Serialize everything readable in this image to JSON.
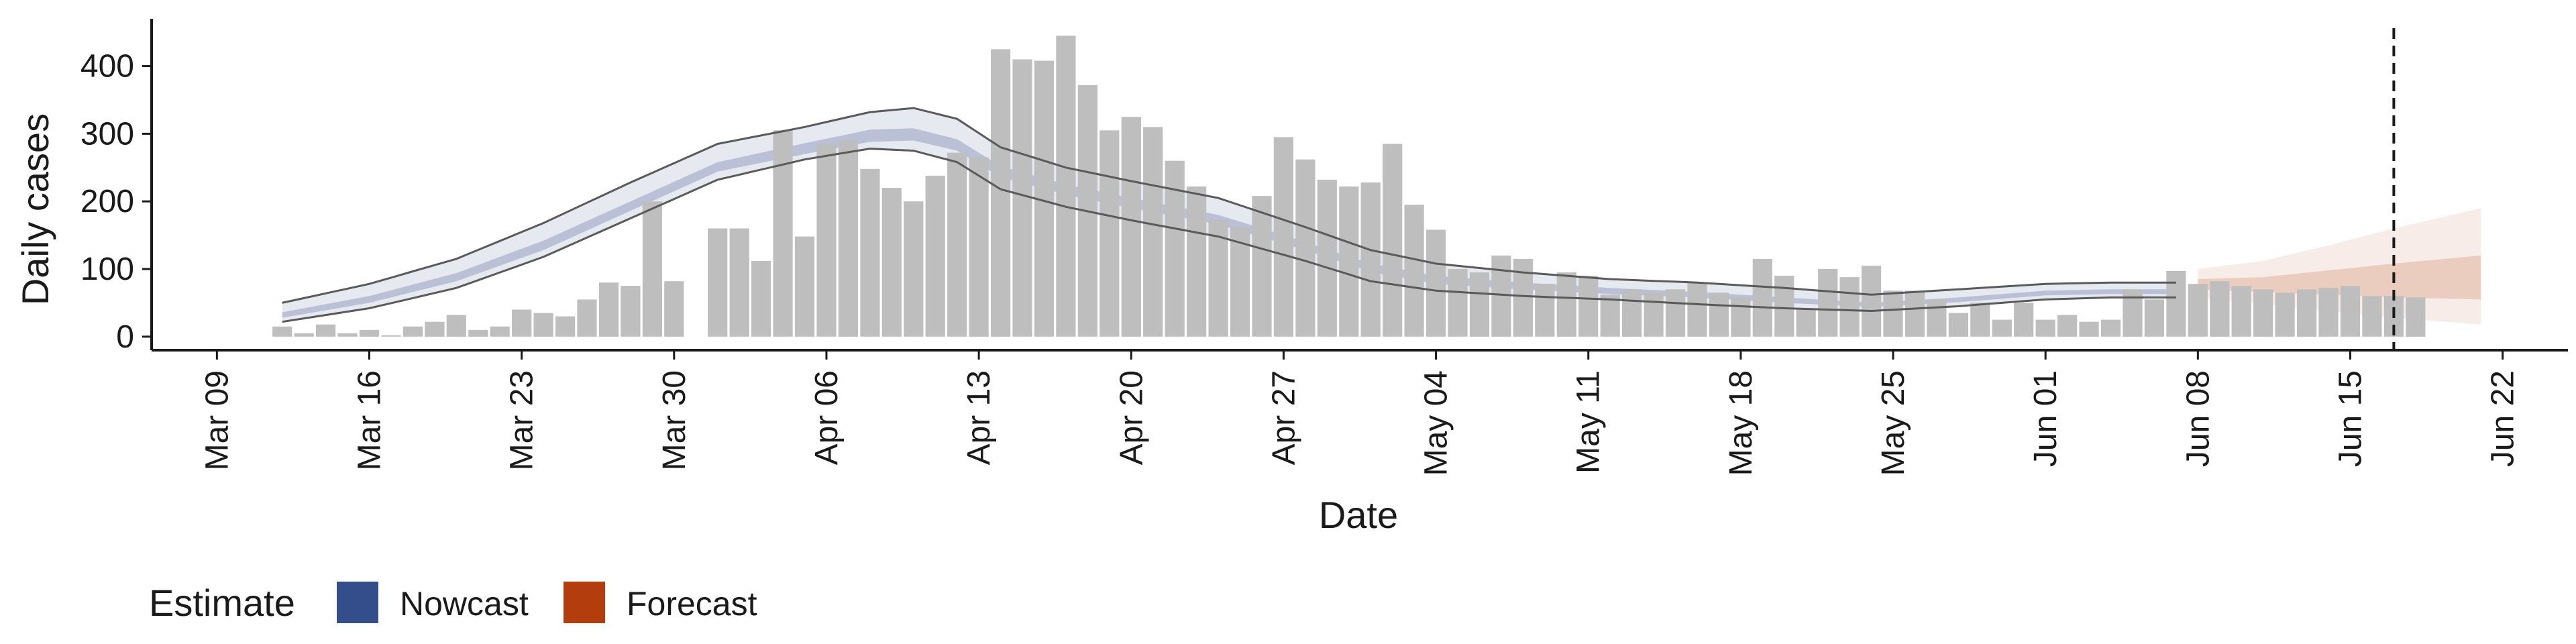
{
  "chart_data": {
    "type": "bar",
    "xlabel": "Date",
    "ylabel": "Daily cases",
    "date_range": [
      "2020-03-06",
      "2020-06-25"
    ],
    "ylim": [
      -20,
      470
    ],
    "y_ticks": [
      0,
      100,
      200,
      300,
      400
    ],
    "x_ticks": [
      {
        "date": "2020-03-09",
        "label": "Mar 09"
      },
      {
        "date": "2020-03-16",
        "label": "Mar 16"
      },
      {
        "date": "2020-03-23",
        "label": "Mar 23"
      },
      {
        "date": "2020-03-30",
        "label": "Mar 30"
      },
      {
        "date": "2020-04-06",
        "label": "Apr 06"
      },
      {
        "date": "2020-04-13",
        "label": "Apr 13"
      },
      {
        "date": "2020-04-20",
        "label": "Apr 20"
      },
      {
        "date": "2020-04-27",
        "label": "Apr 27"
      },
      {
        "date": "2020-05-04",
        "label": "May 04"
      },
      {
        "date": "2020-05-11",
        "label": "May 11"
      },
      {
        "date": "2020-05-18",
        "label": "May 18"
      },
      {
        "date": "2020-05-25",
        "label": "May 25"
      },
      {
        "date": "2020-06-01",
        "label": "Jun 01"
      },
      {
        "date": "2020-06-08",
        "label": "Jun 08"
      },
      {
        "date": "2020-06-15",
        "label": "Jun 15"
      },
      {
        "date": "2020-06-22",
        "label": "Jun 22"
      }
    ],
    "bars": {
      "start_date": "2020-03-12",
      "values": [
        15,
        5,
        18,
        5,
        10,
        2,
        15,
        22,
        32,
        10,
        15,
        40,
        35,
        30,
        55,
        80,
        75,
        200,
        82,
        0,
        160,
        160,
        112,
        305,
        148,
        285,
        290,
        248,
        220,
        200,
        238,
        272,
        265,
        425,
        410,
        408,
        445,
        372,
        305,
        325,
        310,
        260,
        222,
        172,
        162,
        208,
        295,
        262,
        232,
        222,
        228,
        285,
        195,
        158,
        100,
        95,
        120,
        115,
        78,
        95,
        90,
        62,
        70,
        65,
        70,
        80,
        65,
        58,
        115,
        90,
        40,
        100,
        88,
        105,
        68,
        68,
        55,
        35,
        50,
        25,
        50,
        25,
        32,
        22,
        25,
        70,
        55,
        97,
        78,
        82,
        75,
        70,
        65,
        70,
        72,
        75,
        60,
        60,
        58
      ]
    },
    "nowcast": {
      "start_date": "2020-03-12",
      "end_date": "2020-06-07",
      "outer_upper_points": [
        [
          "2020-03-12",
          50
        ],
        [
          "2020-03-16",
          78
        ],
        [
          "2020-03-20",
          115
        ],
        [
          "2020-03-24",
          168
        ],
        [
          "2020-03-28",
          228
        ],
        [
          "2020-04-01",
          285
        ],
        [
          "2020-04-05",
          310
        ],
        [
          "2020-04-08",
          332
        ],
        [
          "2020-04-10",
          338
        ],
        [
          "2020-04-12",
          322
        ],
        [
          "2020-04-14",
          280
        ],
        [
          "2020-04-17",
          250
        ],
        [
          "2020-04-20",
          230
        ],
        [
          "2020-04-24",
          205
        ],
        [
          "2020-04-28",
          162
        ],
        [
          "2020-05-01",
          128
        ],
        [
          "2020-05-04",
          108
        ],
        [
          "2020-05-08",
          95
        ],
        [
          "2020-05-12",
          85
        ],
        [
          "2020-05-16",
          80
        ],
        [
          "2020-05-20",
          72
        ],
        [
          "2020-05-24",
          62
        ],
        [
          "2020-05-28",
          70
        ],
        [
          "2020-06-01",
          78
        ],
        [
          "2020-06-04",
          80
        ],
        [
          "2020-06-07",
          80
        ]
      ],
      "outer_lower_points": [
        [
          "2020-03-12",
          22
        ],
        [
          "2020-03-16",
          42
        ],
        [
          "2020-03-20",
          72
        ],
        [
          "2020-03-24",
          118
        ],
        [
          "2020-03-28",
          175
        ],
        [
          "2020-04-01",
          232
        ],
        [
          "2020-04-05",
          262
        ],
        [
          "2020-04-08",
          278
        ],
        [
          "2020-04-10",
          275
        ],
        [
          "2020-04-12",
          258
        ],
        [
          "2020-04-14",
          218
        ],
        [
          "2020-04-17",
          192
        ],
        [
          "2020-04-20",
          172
        ],
        [
          "2020-04-24",
          148
        ],
        [
          "2020-04-28",
          112
        ],
        [
          "2020-05-01",
          82
        ],
        [
          "2020-05-04",
          68
        ],
        [
          "2020-05-08",
          60
        ],
        [
          "2020-05-12",
          55
        ],
        [
          "2020-05-16",
          48
        ],
        [
          "2020-05-20",
          42
        ],
        [
          "2020-05-24",
          38
        ],
        [
          "2020-05-28",
          45
        ],
        [
          "2020-06-01",
          55
        ],
        [
          "2020-06-04",
          58
        ],
        [
          "2020-06-07",
          58
        ]
      ],
      "inner_upper_points": [
        [
          "2020-03-12",
          36
        ],
        [
          "2020-03-16",
          60
        ],
        [
          "2020-03-20",
          94
        ],
        [
          "2020-03-24",
          142
        ],
        [
          "2020-03-28",
          200
        ],
        [
          "2020-04-01",
          258
        ],
        [
          "2020-04-05",
          286
        ],
        [
          "2020-04-08",
          306
        ],
        [
          "2020-04-10",
          308
        ],
        [
          "2020-04-12",
          292
        ],
        [
          "2020-04-14",
          252
        ],
        [
          "2020-04-17",
          225
        ],
        [
          "2020-04-20",
          205
        ],
        [
          "2020-04-24",
          180
        ],
        [
          "2020-04-28",
          140
        ],
        [
          "2020-05-01",
          108
        ],
        [
          "2020-05-04",
          90
        ],
        [
          "2020-05-08",
          80
        ],
        [
          "2020-05-12",
          72
        ],
        [
          "2020-05-16",
          66
        ],
        [
          "2020-05-20",
          58
        ],
        [
          "2020-05-24",
          50
        ],
        [
          "2020-05-28",
          58
        ],
        [
          "2020-06-01",
          68
        ],
        [
          "2020-06-04",
          70
        ],
        [
          "2020-06-07",
          70
        ]
      ],
      "inner_lower_points": [
        [
          "2020-03-12",
          28
        ],
        [
          "2020-03-16",
          50
        ],
        [
          "2020-03-20",
          82
        ],
        [
          "2020-03-24",
          128
        ],
        [
          "2020-03-28",
          186
        ],
        [
          "2020-04-01",
          244
        ],
        [
          "2020-04-05",
          270
        ],
        [
          "2020-04-08",
          288
        ],
        [
          "2020-04-10",
          290
        ],
        [
          "2020-04-12",
          275
        ],
        [
          "2020-04-14",
          236
        ],
        [
          "2020-04-17",
          210
        ],
        [
          "2020-04-20",
          190
        ],
        [
          "2020-04-24",
          166
        ],
        [
          "2020-04-28",
          128
        ],
        [
          "2020-05-01",
          96
        ],
        [
          "2020-05-04",
          78
        ],
        [
          "2020-05-08",
          70
        ],
        [
          "2020-05-12",
          63
        ],
        [
          "2020-05-16",
          58
        ],
        [
          "2020-05-20",
          50
        ],
        [
          "2020-05-24",
          44
        ],
        [
          "2020-05-28",
          51
        ],
        [
          "2020-06-01",
          61
        ],
        [
          "2020-06-04",
          63
        ],
        [
          "2020-06-07",
          63
        ]
      ]
    },
    "forecast": {
      "start_date": "2020-06-08",
      "end_date": "2020-06-21",
      "outer_upper_points": [
        [
          "2020-06-08",
          100
        ],
        [
          "2020-06-11",
          112
        ],
        [
          "2020-06-14",
          135
        ],
        [
          "2020-06-17",
          160
        ],
        [
          "2020-06-21",
          190
        ]
      ],
      "outer_lower_points": [
        [
          "2020-06-08",
          58
        ],
        [
          "2020-06-11",
          48
        ],
        [
          "2020-06-14",
          38
        ],
        [
          "2020-06-17",
          28
        ],
        [
          "2020-06-21",
          18
        ]
      ],
      "inner_upper_points": [
        [
          "2020-06-08",
          85
        ],
        [
          "2020-06-11",
          88
        ],
        [
          "2020-06-14",
          98
        ],
        [
          "2020-06-17",
          108
        ],
        [
          "2020-06-21",
          120
        ]
      ],
      "inner_lower_points": [
        [
          "2020-06-08",
          70
        ],
        [
          "2020-06-11",
          66
        ],
        [
          "2020-06-14",
          62
        ],
        [
          "2020-06-17",
          58
        ],
        [
          "2020-06-21",
          55
        ]
      ]
    },
    "vline_date": "2020-06-17",
    "colors": {
      "bars": "#bebebe",
      "nowcast": "#3b4e8c",
      "forecast": "#b5400f",
      "interval_line": "#5a5a5a",
      "axis": "#1a1a1a"
    },
    "legend": {
      "title": "Estimate",
      "position": "bottom-left",
      "items": [
        {
          "label": "Nowcast",
          "color": "#344e8c"
        },
        {
          "label": "Forecast",
          "color": "#b43d0d"
        }
      ]
    }
  }
}
